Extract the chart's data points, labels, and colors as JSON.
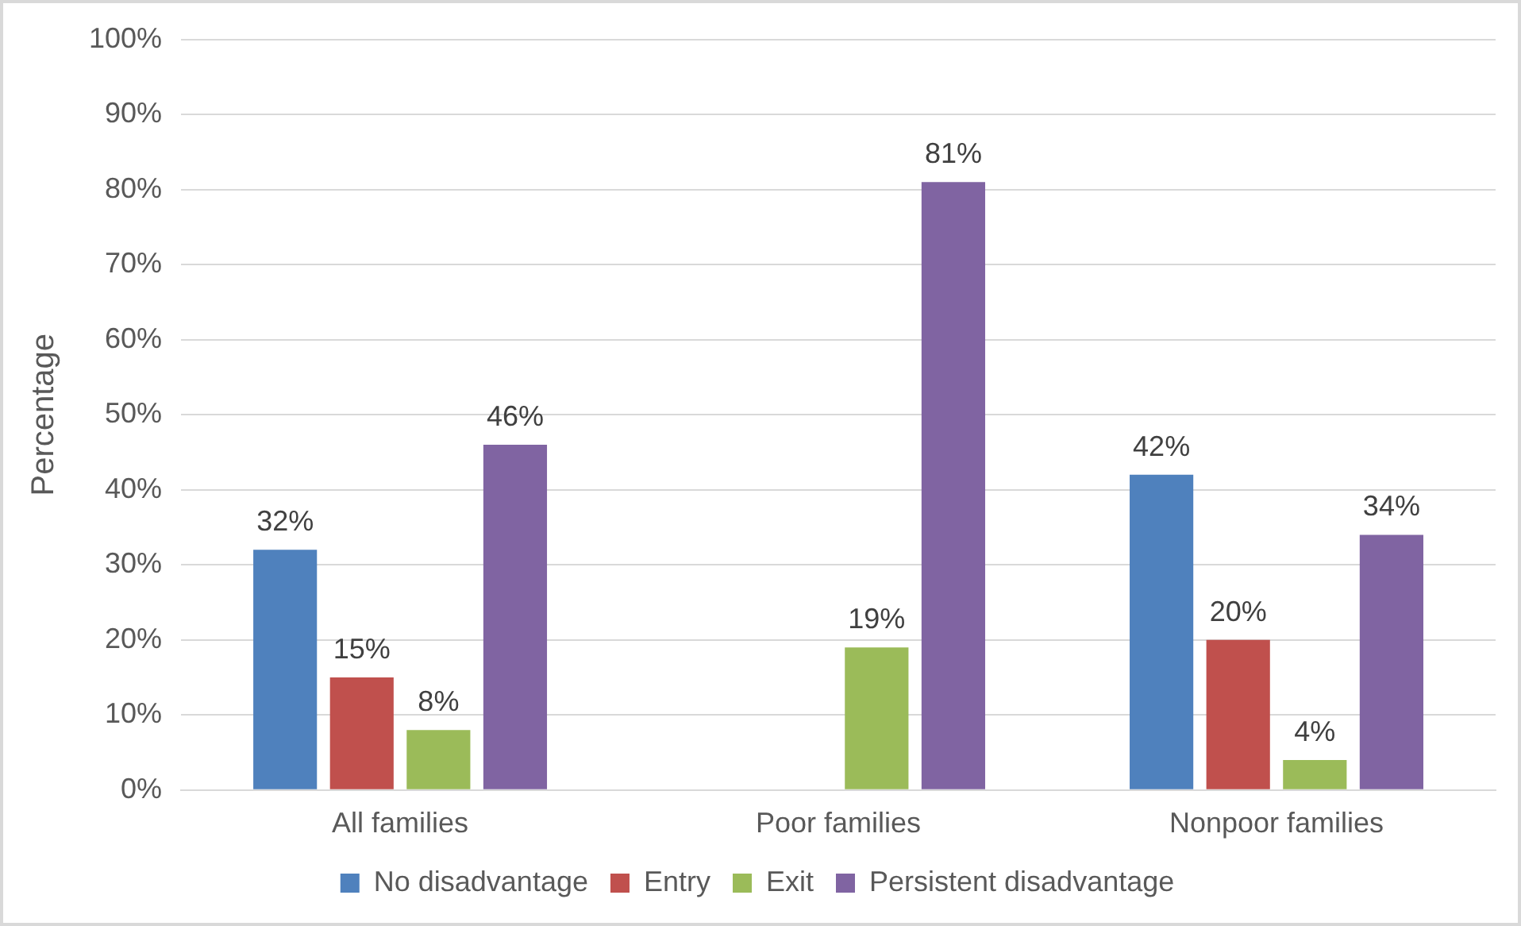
{
  "chart_data": {
    "type": "bar",
    "ylabel": "Percentage",
    "categories": [
      "All families",
      "Poor families",
      "Nonpoor families"
    ],
    "series": [
      {
        "name": "No disadvantage",
        "color": "#4f81bd",
        "values": [
          32,
          null,
          42
        ],
        "value_labels": [
          "32%",
          null,
          "42%"
        ]
      },
      {
        "name": "Entry",
        "color": "#c0504d",
        "values": [
          15,
          null,
          20
        ],
        "value_labels": [
          "15%",
          null,
          "20%"
        ]
      },
      {
        "name": "Exit",
        "color": "#9bbb59",
        "values": [
          8,
          19,
          4
        ],
        "value_labels": [
          "8%",
          "19%",
          "4%"
        ]
      },
      {
        "name": "Persistent disadvantage",
        "color": "#8064a2",
        "values": [
          46,
          81,
          34
        ],
        "value_labels": [
          "46%",
          "81%",
          "34%"
        ]
      }
    ],
    "ylim": [
      0,
      100
    ],
    "yticks": [
      {
        "value": 0,
        "label": "0%"
      },
      {
        "value": 10,
        "label": "10%"
      },
      {
        "value": 20,
        "label": "20%"
      },
      {
        "value": 30,
        "label": "30%"
      },
      {
        "value": 40,
        "label": "40%"
      },
      {
        "value": 50,
        "label": "50%"
      },
      {
        "value": 60,
        "label": "60%"
      },
      {
        "value": 70,
        "label": "70%"
      },
      {
        "value": 80,
        "label": "80%"
      },
      {
        "value": 90,
        "label": "90%"
      },
      {
        "value": 100,
        "label": "100%"
      }
    ],
    "grid": "y",
    "legend": "bottom"
  }
}
